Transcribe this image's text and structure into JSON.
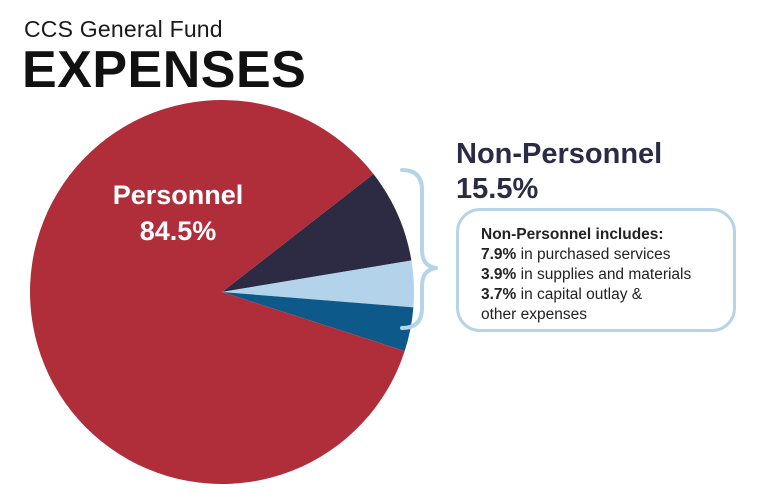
{
  "header": {
    "subtitle": "CCS General Fund",
    "title": "EXPENSES"
  },
  "chart_data": {
    "type": "pie",
    "title": "EXPENSES",
    "subtitle": "CCS General Fund",
    "slices": [
      {
        "label": "Personnel",
        "value": 84.5,
        "color": "#b02e3a"
      },
      {
        "label": "Purchased services",
        "value": 7.9,
        "color": "#2d2a44"
      },
      {
        "label": "Supplies and materials",
        "value": 3.9,
        "color": "#b3d3eb"
      },
      {
        "label": "Capital outlay & other expenses",
        "value": 3.7,
        "color": "#0d5a8a"
      }
    ],
    "data_labels": {
      "personnel_name": "Personnel",
      "personnel_pct": "84.5%"
    }
  },
  "non_personnel": {
    "title": "Non-Personnel",
    "percent": "15.5%",
    "bracket_color": "#b6d4e7",
    "box": {
      "heading": "Non-Personnel includes:",
      "items": [
        {
          "value": "7.9%",
          "text": " in purchased services"
        },
        {
          "value": "3.9%",
          "text": " in supplies and materials"
        },
        {
          "value": "3.7%",
          "text": " in capital outlay &"
        }
      ],
      "continuation": "other expenses"
    }
  }
}
